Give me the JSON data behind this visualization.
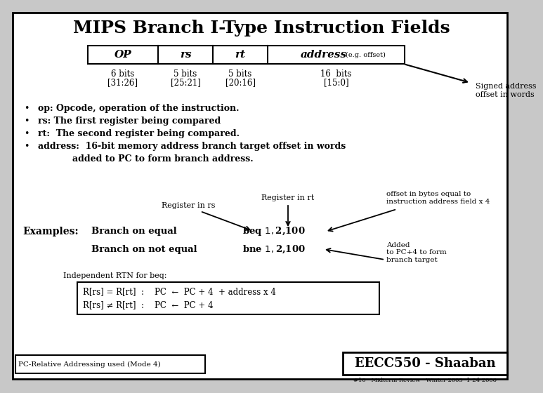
{
  "title": "MIPS Branch I-Type Instruction Fields",
  "bg_color": "#c8c8c8",
  "slide_bg": "#ffffff",
  "border_color": "#000000",
  "table_fields": [
    "OP",
    "rs",
    "rt",
    "address"
  ],
  "address_suffix": " (e.g. offset)",
  "field_bits": [
    "6 bits\n[31:26]",
    "5 bits\n[25:21]",
    "5 bits\n[20:16]",
    "16  bits\n[15:0]"
  ],
  "signed_addr_text": "Signed address\noffset in words",
  "bullet1": "op: Opcode, operation of the instruction.",
  "bullet2": "rs: The first register being compared",
  "bullet3": "rt:  The second register being compared.",
  "bullet4a": "address:  16-bit memory address branch target offset in words",
  "bullet4b": "        added to PC to form branch address.",
  "examples_label": "Examples:",
  "branch_equal": "Branch on equal",
  "branch_not_equal": "Branch on not equal",
  "beq_code": "beq $1,$2,100",
  "bne_code": "bne $1,$2,100",
  "reg_rs_label": "Register in rs",
  "reg_rt_label": "Register in rt",
  "offset_note": "offset in bytes equal to\ninstruction address field x 4",
  "added_note": "Added\nto PC+4 to form\nbranch target",
  "rtn_label": "Independent RTN for beq:",
  "rtn_box_line1": "R[rs] = R[rt]  :    PC  ←  PC + 4  + address x 4",
  "rtn_box_line2": "R[rs] ≠ R[rt]  :    PC  ←  PC + 4",
  "footer_left": "PC-Relative Addressing used (Mode 4)",
  "footer_right": "EECC550 - Shaaban",
  "footer_sub": "#10   Midterm Review   Winter 2005  1-24-2006"
}
